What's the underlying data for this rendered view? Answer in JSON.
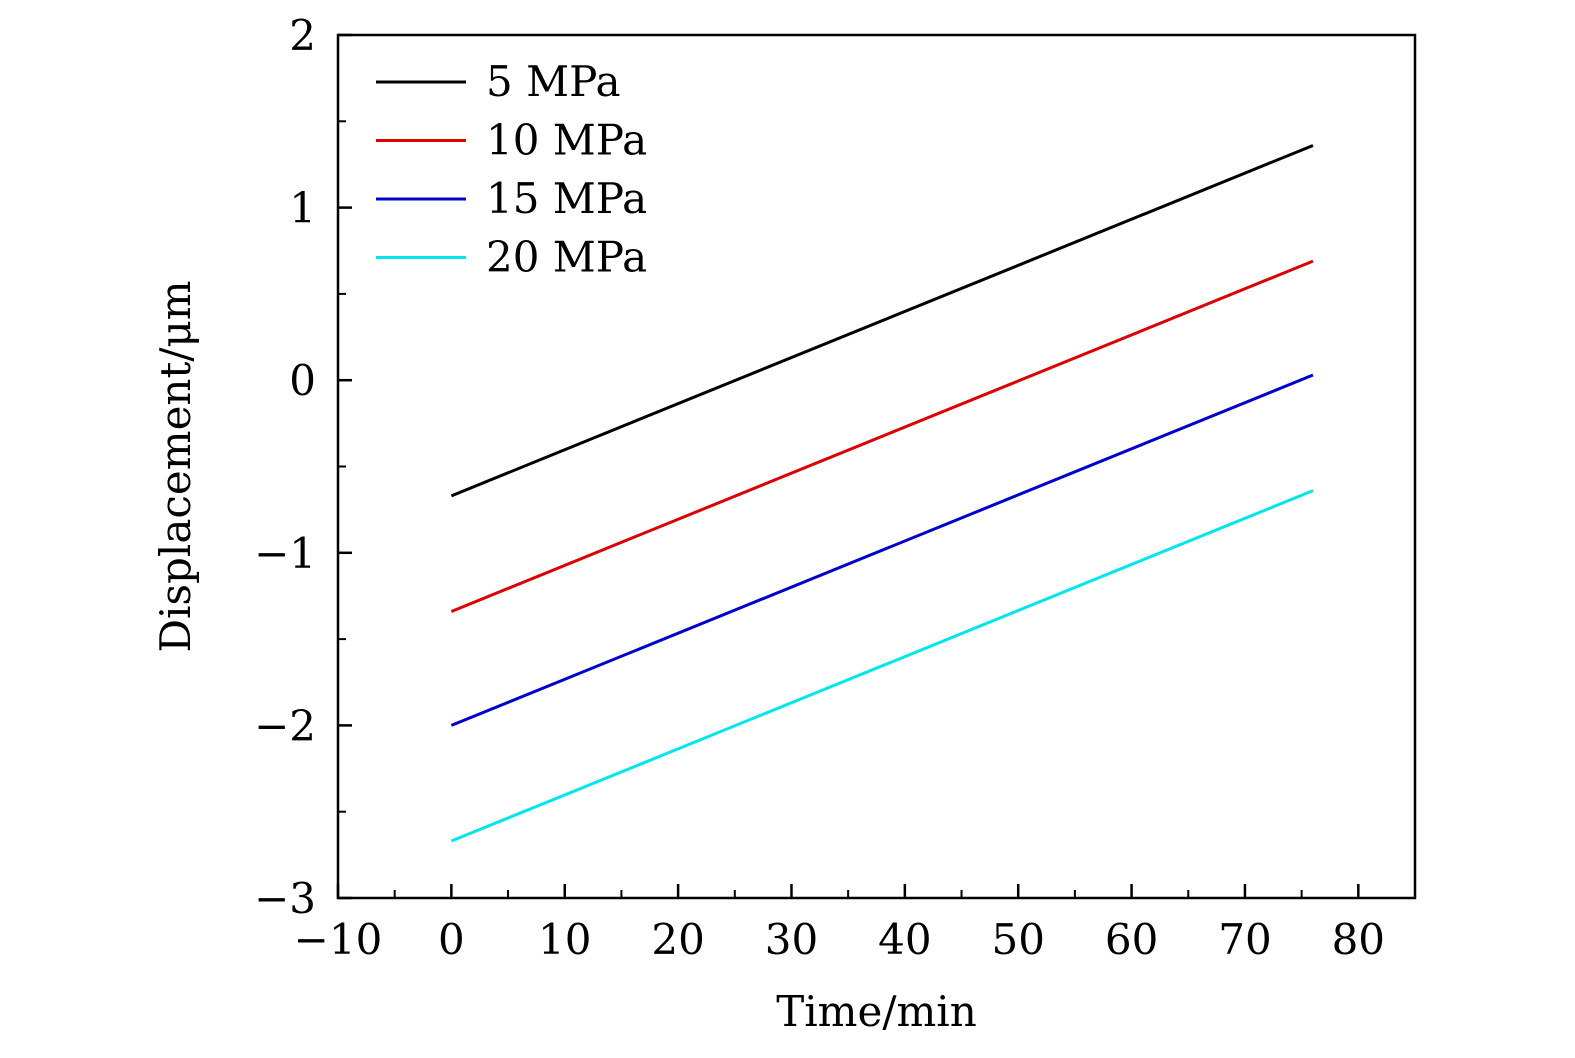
{
  "chart_data": {
    "type": "line",
    "xlabel": "Time/min",
    "ylabel": "Displacement/μm",
    "xlim": [
      -10,
      85
    ],
    "ylim": [
      -3,
      2
    ],
    "x_ticks": [
      -10,
      0,
      10,
      20,
      30,
      40,
      50,
      60,
      70,
      80
    ],
    "x_tick_labels": [
      "−10",
      "0",
      "10",
      "20",
      "30",
      "40",
      "50",
      "60",
      "70",
      "80"
    ],
    "y_ticks": [
      -3,
      -2,
      -1,
      0,
      1,
      2
    ],
    "y_tick_labels": [
      "−3",
      "−2",
      "−1",
      "0",
      "1",
      "2"
    ],
    "grid": false,
    "legend_position": "top-left",
    "series": [
      {
        "name": "5 MPa",
        "color": "#000000",
        "x": [
          0,
          76
        ],
        "y": [
          -0.67,
          1.36
        ]
      },
      {
        "name": "10 MPa",
        "color": "#dd0000",
        "x": [
          0,
          76
        ],
        "y": [
          -1.34,
          0.69
        ]
      },
      {
        "name": "15 MPa",
        "color": "#0000cc",
        "x": [
          0,
          76
        ],
        "y": [
          -2.0,
          0.03
        ]
      },
      {
        "name": "20 MPa",
        "color": "#00e5ee",
        "x": [
          0,
          76
        ],
        "y": [
          -2.67,
          -0.64
        ]
      }
    ]
  }
}
